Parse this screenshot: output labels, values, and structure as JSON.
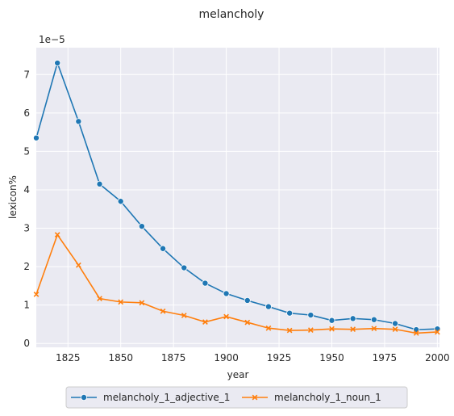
{
  "chart_data": {
    "type": "line",
    "title": "melancholy",
    "xlabel": "year",
    "ylabel": "lexicon%",
    "y_scale_label": "1e−5",
    "xlim": [
      1810,
      2001
    ],
    "ylim": [
      -0.1,
      7.7
    ],
    "x_ticks": [
      1825,
      1850,
      1875,
      1900,
      1925,
      1950,
      1975,
      2000
    ],
    "y_ticks": [
      0,
      1,
      2,
      3,
      4,
      5,
      6,
      7
    ],
    "grid": true,
    "legend_position": "bottom-center",
    "x": [
      1810,
      1820,
      1830,
      1840,
      1850,
      1860,
      1870,
      1880,
      1890,
      1900,
      1910,
      1920,
      1930,
      1940,
      1950,
      1960,
      1970,
      1980,
      1990,
      2000
    ],
    "series": [
      {
        "name": "melancholy_1_adjective_1",
        "color": "#1f77b4",
        "marker": "circle",
        "values": [
          5.35,
          7.3,
          5.78,
          4.15,
          3.7,
          3.05,
          2.47,
          1.97,
          1.57,
          1.3,
          1.12,
          0.96,
          0.79,
          0.74,
          0.6,
          0.65,
          0.62,
          0.52,
          0.36,
          0.38
        ]
      },
      {
        "name": "melancholy_1_noun_1",
        "color": "#ff7f0e",
        "marker": "x",
        "values": [
          1.28,
          2.83,
          2.04,
          1.17,
          1.08,
          1.06,
          0.84,
          0.73,
          0.56,
          0.7,
          0.55,
          0.4,
          0.34,
          0.35,
          0.38,
          0.37,
          0.39,
          0.37,
          0.27,
          0.3
        ]
      }
    ]
  }
}
